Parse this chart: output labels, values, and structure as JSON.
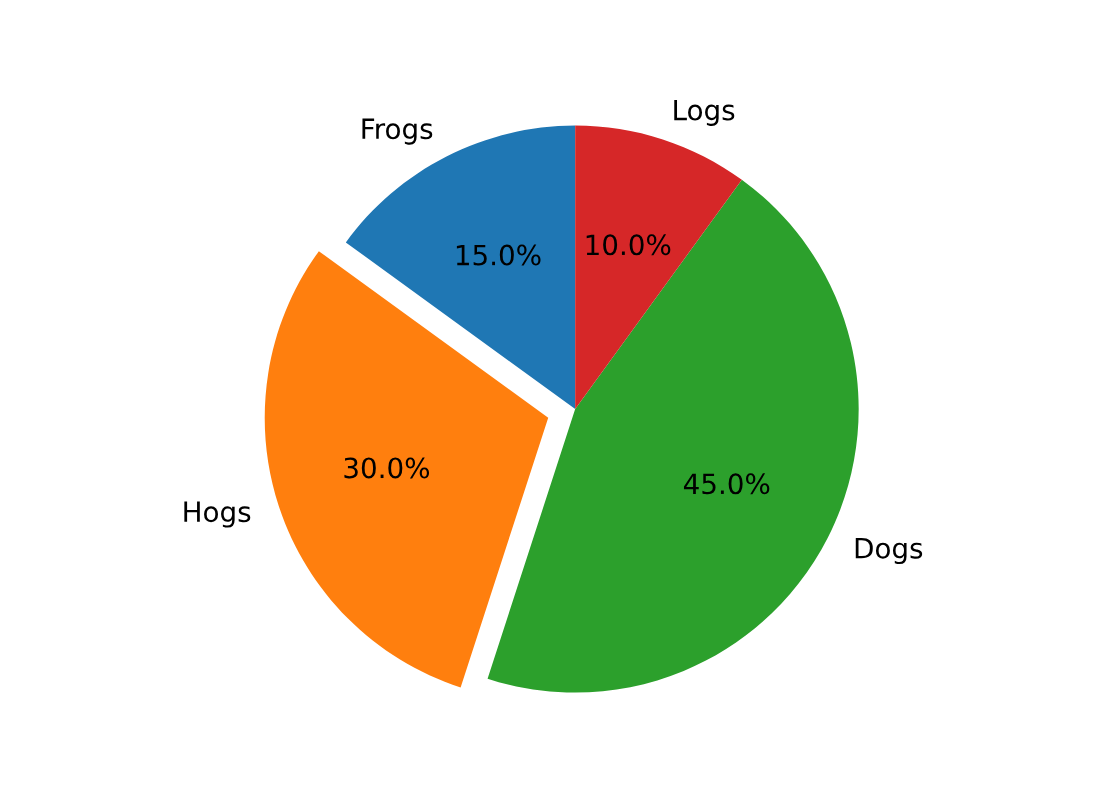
{
  "chart_data": {
    "type": "pie",
    "categories": [
      "Frogs",
      "Hogs",
      "Dogs",
      "Logs"
    ],
    "values": [
      15,
      30,
      45,
      10
    ],
    "colors": [
      "#1f77b4",
      "#ff7f0e",
      "#2ca02c",
      "#d62728"
    ],
    "value_labels": [
      "15.0%",
      "30.0%",
      "45.0%",
      "10.0%"
    ]
  }
}
